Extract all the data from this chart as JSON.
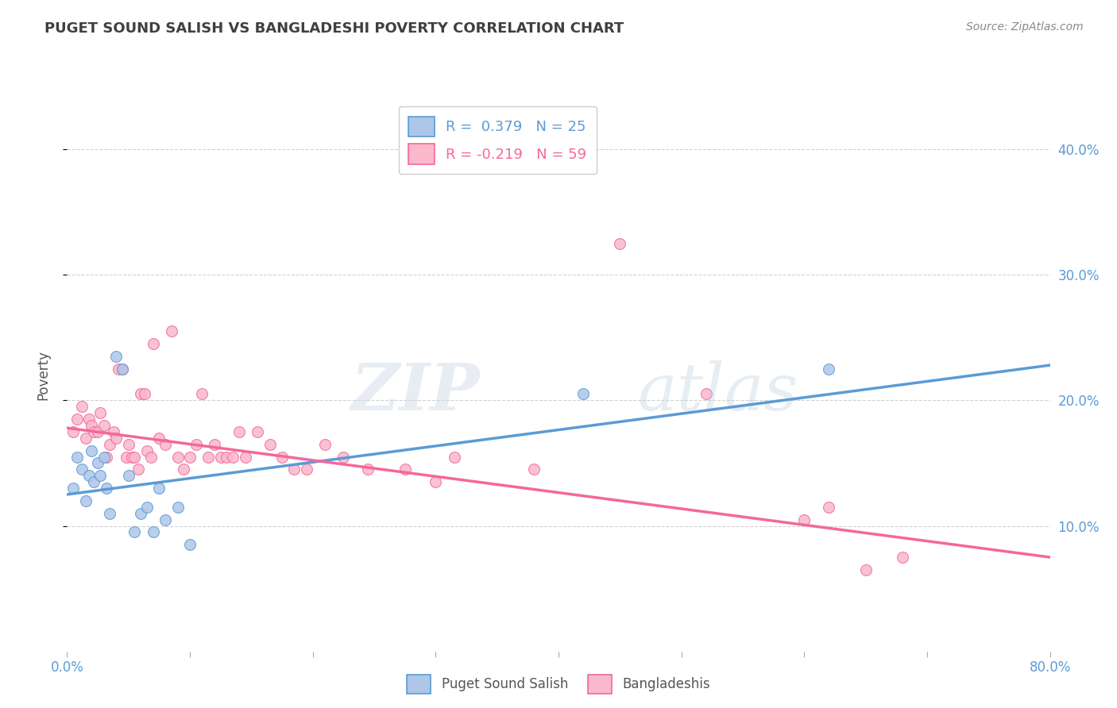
{
  "title": "PUGET SOUND SALISH VS BANGLADESHI POVERTY CORRELATION CHART",
  "source": "Source: ZipAtlas.com",
  "ylabel": "Poverty",
  "right_yticks": [
    "10.0%",
    "20.0%",
    "30.0%",
    "40.0%"
  ],
  "right_ytick_vals": [
    0.1,
    0.2,
    0.3,
    0.4
  ],
  "xlim": [
    0.0,
    0.8
  ],
  "ylim": [
    0.0,
    0.44
  ],
  "x_minor_ticks": [
    0.0,
    0.1,
    0.2,
    0.3,
    0.4,
    0.5,
    0.6,
    0.7,
    0.8
  ],
  "legend_entries": [
    {
      "label": "R =  0.379   N = 25",
      "color": "#aec6e8"
    },
    {
      "label": "R = -0.219   N = 59",
      "color": "#f4a7b9"
    }
  ],
  "legend_bottom": [
    {
      "label": "Puget Sound Salish",
      "color": "#aec6e8"
    },
    {
      "label": "Bangladeshis",
      "color": "#f4a7b9"
    }
  ],
  "blue_scatter_x": [
    0.005,
    0.008,
    0.012,
    0.015,
    0.018,
    0.02,
    0.022,
    0.025,
    0.027,
    0.03,
    0.032,
    0.035,
    0.04,
    0.045,
    0.05,
    0.055,
    0.06,
    0.065,
    0.07,
    0.075,
    0.08,
    0.09,
    0.1,
    0.42,
    0.62
  ],
  "blue_scatter_y": [
    0.13,
    0.155,
    0.145,
    0.12,
    0.14,
    0.16,
    0.135,
    0.15,
    0.14,
    0.155,
    0.13,
    0.11,
    0.235,
    0.225,
    0.14,
    0.095,
    0.11,
    0.115,
    0.095,
    0.13,
    0.105,
    0.115,
    0.085,
    0.205,
    0.225
  ],
  "pink_scatter_x": [
    0.005,
    0.008,
    0.012,
    0.015,
    0.018,
    0.02,
    0.022,
    0.025,
    0.027,
    0.03,
    0.032,
    0.035,
    0.038,
    0.04,
    0.042,
    0.045,
    0.048,
    0.05,
    0.053,
    0.055,
    0.058,
    0.06,
    0.063,
    0.065,
    0.068,
    0.07,
    0.075,
    0.08,
    0.085,
    0.09,
    0.095,
    0.1,
    0.105,
    0.11,
    0.115,
    0.12,
    0.125,
    0.13,
    0.135,
    0.14,
    0.145,
    0.155,
    0.165,
    0.175,
    0.185,
    0.195,
    0.21,
    0.225,
    0.245,
    0.275,
    0.3,
    0.315,
    0.38,
    0.45,
    0.52,
    0.6,
    0.62,
    0.65,
    0.68
  ],
  "pink_scatter_y": [
    0.175,
    0.185,
    0.195,
    0.17,
    0.185,
    0.18,
    0.175,
    0.175,
    0.19,
    0.18,
    0.155,
    0.165,
    0.175,
    0.17,
    0.225,
    0.225,
    0.155,
    0.165,
    0.155,
    0.155,
    0.145,
    0.205,
    0.205,
    0.16,
    0.155,
    0.245,
    0.17,
    0.165,
    0.255,
    0.155,
    0.145,
    0.155,
    0.165,
    0.205,
    0.155,
    0.165,
    0.155,
    0.155,
    0.155,
    0.175,
    0.155,
    0.175,
    0.165,
    0.155,
    0.145,
    0.145,
    0.165,
    0.155,
    0.145,
    0.145,
    0.135,
    0.155,
    0.145,
    0.325,
    0.205,
    0.105,
    0.115,
    0.065,
    0.075
  ],
  "blue_line_x": [
    0.0,
    0.8
  ],
  "blue_line_y": [
    0.125,
    0.228
  ],
  "pink_line_x": [
    0.0,
    0.8
  ],
  "pink_line_y": [
    0.178,
    0.075
  ],
  "blue_color": "#5b9bd5",
  "pink_color": "#f4679d",
  "blue_scatter_color": "#aec6e8",
  "pink_scatter_color": "#f9b8cb",
  "grid_color": "#cccccc",
  "bg_color": "#ffffff",
  "title_color": "#404040",
  "right_axis_color": "#5b9bd5"
}
